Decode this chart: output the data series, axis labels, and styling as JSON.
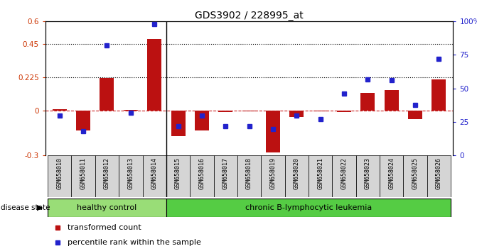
{
  "title": "GDS3902 / 228995_at",
  "samples": [
    "GSM658010",
    "GSM658011",
    "GSM658012",
    "GSM658013",
    "GSM658014",
    "GSM658015",
    "GSM658016",
    "GSM658017",
    "GSM658018",
    "GSM658019",
    "GSM658020",
    "GSM658021",
    "GSM658022",
    "GSM658023",
    "GSM658024",
    "GSM658025",
    "GSM658026"
  ],
  "transformed_count": [
    0.01,
    -0.13,
    0.22,
    0.005,
    0.48,
    -0.17,
    -0.13,
    -0.01,
    -0.005,
    -0.28,
    -0.04,
    -0.005,
    -0.01,
    0.12,
    0.14,
    -0.055,
    0.21
  ],
  "percentile_rank": [
    30,
    18,
    82,
    32,
    98,
    22,
    30,
    22,
    22,
    20,
    30,
    27,
    46,
    57,
    56,
    38,
    72
  ],
  "healthy_control_count": 5,
  "ylim_left": [
    -0.3,
    0.6
  ],
  "ylim_right": [
    0,
    100
  ],
  "yticks_left": [
    -0.3,
    0.0,
    0.225,
    0.45,
    0.6
  ],
  "yticks_right": [
    0,
    25,
    50,
    75,
    100
  ],
  "ytick_labels_left": [
    "-0.3",
    "0",
    "0.225",
    "0.45",
    "0.6"
  ],
  "ytick_labels_right": [
    "0",
    "25",
    "50",
    "75",
    "100%"
  ],
  "hlines": [
    0.45,
    0.225
  ],
  "bar_color": "#bb1111",
  "dot_color": "#2222cc",
  "zero_line_color": "#cc2222",
  "bg_color_healthy": "#99dd77",
  "bg_color_leukemia": "#55cc44",
  "label_bar": "transformed count",
  "label_dot": "percentile rank within the sample",
  "disease_state_label": "disease state",
  "label_healthy": "healthy control",
  "label_leukemia": "chronic B-lymphocytic leukemia"
}
